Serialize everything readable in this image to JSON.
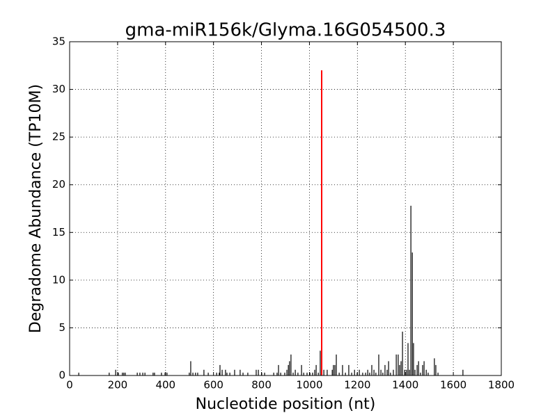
{
  "chart_data": {
    "type": "vlines",
    "title": "gma-miR156k/Glyma.16G054500.3",
    "xlabel": "Nucleotide position (nt)",
    "ylabel": "Degradome Abundance (TP10M)",
    "xlim": [
      0,
      1800
    ],
    "ylim": [
      0,
      35
    ],
    "xticks": [
      0,
      200,
      400,
      600,
      800,
      1000,
      1200,
      1400,
      1600,
      1800
    ],
    "yticks": [
      0,
      5,
      10,
      15,
      20,
      25,
      30,
      35
    ],
    "grid": true,
    "series": [
      {
        "color": "#000000",
        "x": [
          38,
          165,
          192,
          203,
          220,
          226,
          232,
          282,
          293,
          305,
          314,
          348,
          354,
          383,
          398,
          406,
          499,
          505,
          514,
          525,
          534,
          560,
          578,
          613,
          624,
          627,
          636,
          650,
          656,
          668,
          688,
          711,
          723,
          743,
          778,
          787,
          801,
          813,
          851,
          865,
          871,
          880,
          897,
          906,
          912,
          917,
          923,
          932,
          941,
          952,
          967,
          976,
          990,
          1002,
          1013,
          1022,
          1028,
          1037,
          1045,
          1060,
          1074,
          1095,
          1100,
          1106,
          1112,
          1124,
          1138,
          1150,
          1164,
          1176,
          1188,
          1199,
          1208,
          1222,
          1234,
          1243,
          1251,
          1260,
          1269,
          1277,
          1289,
          1298,
          1306,
          1315,
          1324,
          1330,
          1338,
          1350,
          1362,
          1370,
          1376,
          1382,
          1388,
          1397,
          1405,
          1411,
          1417,
          1423,
          1429,
          1434,
          1440,
          1449,
          1455,
          1463,
          1472,
          1478,
          1487,
          1495,
          1521,
          1527,
          1536,
          1640
        ],
        "values": [
          0.3,
          0.3,
          0.6,
          0.3,
          0.3,
          0.3,
          0.3,
          0.3,
          0.3,
          0.3,
          0.3,
          0.3,
          0.3,
          0.3,
          0.3,
          0.3,
          0.3,
          1.5,
          0.3,
          0.3,
          0.3,
          0.6,
          0.3,
          0.3,
          0.3,
          1.1,
          0.6,
          0.6,
          0.3,
          0.3,
          0.6,
          0.6,
          0.3,
          0.3,
          0.6,
          0.6,
          0.3,
          0.3,
          0.3,
          0.3,
          1.1,
          0.3,
          0.3,
          0.6,
          1.1,
          1.5,
          2.2,
          0.3,
          0.6,
          0.3,
          1.1,
          0.3,
          0.3,
          0.3,
          0.3,
          0.6,
          1.1,
          0.3,
          2.6,
          0.6,
          0.6,
          0.6,
          1.1,
          1.1,
          2.2,
          0.3,
          1.1,
          0.3,
          1.1,
          0.3,
          0.6,
          0.3,
          0.6,
          0.3,
          0.3,
          0.6,
          0.3,
          1.1,
          0.6,
          0.3,
          2.2,
          0.6,
          0.3,
          1.1,
          0.6,
          1.5,
          0.3,
          0.6,
          2.2,
          2.2,
          1.1,
          1.5,
          4.6,
          0.6,
          0.6,
          3.4,
          0.6,
          17.8,
          12.9,
          3.4,
          0.6,
          1.1,
          1.5,
          0.3,
          1.1,
          1.5,
          0.6,
          0.3,
          1.8,
          1.1,
          0.3,
          0.6
        ]
      },
      {
        "color": "#ff0000",
        "x": [
          1051
        ],
        "values": [
          32
        ]
      }
    ]
  }
}
